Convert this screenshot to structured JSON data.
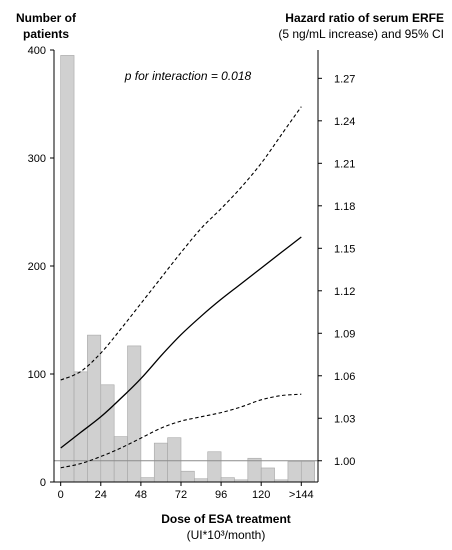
{
  "chart_data": {
    "type": "bar",
    "left_axis_title": [
      "Number of",
      "patients"
    ],
    "right_axis_title": [
      "Hazard ratio of serum ERFE",
      "(5 ng/mL increase) and 95% CI"
    ],
    "x_axis_title": [
      "Dose of ESA treatment",
      "(UI*10³/month)"
    ],
    "annotation": "p for interaction = 0.018",
    "x_ticks": [
      {
        "value": 0,
        "label": "0"
      },
      {
        "value": 24,
        "label": "24"
      },
      {
        "value": 48,
        "label": "48"
      },
      {
        "value": 72,
        "label": "72"
      },
      {
        "value": 96,
        "label": "96"
      },
      {
        "value": 120,
        "label": "120"
      },
      {
        "value": 144,
        "label": ">144"
      }
    ],
    "xlim": [
      -4,
      154
    ],
    "bar_width": 8,
    "histogram": {
      "name": "Number of patients",
      "ylim": [
        0,
        400
      ],
      "yticks": [
        0,
        100,
        200,
        300,
        400
      ],
      "bars": [
        {
          "x": 4,
          "y": 395
        },
        {
          "x": 12,
          "y": 102
        },
        {
          "x": 20,
          "y": 136
        },
        {
          "x": 28,
          "y": 90
        },
        {
          "x": 36,
          "y": 42
        },
        {
          "x": 44,
          "y": 126
        },
        {
          "x": 52,
          "y": 4
        },
        {
          "x": 60,
          "y": 36
        },
        {
          "x": 68,
          "y": 41
        },
        {
          "x": 76,
          "y": 10
        },
        {
          "x": 84,
          "y": 3
        },
        {
          "x": 92,
          "y": 28
        },
        {
          "x": 100,
          "y": 4
        },
        {
          "x": 108,
          "y": 2
        },
        {
          "x": 116,
          "y": 22
        },
        {
          "x": 124,
          "y": 13
        },
        {
          "x": 132,
          "y": 2
        },
        {
          "x": 140,
          "y": 19
        },
        {
          "x": 148,
          "y": 19
        }
      ]
    },
    "hazard_ratio": {
      "ylim": [
        0.985,
        1.29
      ],
      "yticks": [
        1.0,
        1.03,
        1.06,
        1.09,
        1.12,
        1.15,
        1.18,
        1.21,
        1.24,
        1.27
      ],
      "ytick_labels": [
        "1.00",
        "1.03",
        "1.06",
        "1.09",
        "1.12",
        "1.15",
        "1.18",
        "1.21",
        "1.24",
        "1.27"
      ],
      "reference_line": 1.0,
      "estimate": {
        "x": [
          0,
          12,
          24,
          36,
          48,
          60,
          72,
          84,
          96,
          108,
          120,
          132,
          144
        ],
        "y": [
          1.009,
          1.02,
          1.031,
          1.044,
          1.058,
          1.074,
          1.089,
          1.102,
          1.114,
          1.125,
          1.136,
          1.147,
          1.158
        ]
      },
      "upper_ci": {
        "x": [
          0,
          12,
          24,
          36,
          48,
          60,
          72,
          84,
          96,
          108,
          120,
          132,
          144
        ],
        "y": [
          1.057,
          1.063,
          1.076,
          1.093,
          1.111,
          1.129,
          1.147,
          1.164,
          1.178,
          1.193,
          1.21,
          1.23,
          1.25
        ]
      },
      "lower_ci": {
        "x": [
          0,
          12,
          24,
          36,
          48,
          60,
          72,
          84,
          96,
          108,
          120,
          132,
          144
        ],
        "y": [
          0.995,
          0.998,
          1.003,
          1.009,
          1.016,
          1.023,
          1.028,
          1.031,
          1.034,
          1.038,
          1.043,
          1.046,
          1.047
        ]
      }
    },
    "colors": {
      "bar_fill": "#d0d0d0",
      "bar_stroke": "#a6a6a6",
      "reference_line": "#8c8c8c",
      "curve": "#000000"
    }
  }
}
